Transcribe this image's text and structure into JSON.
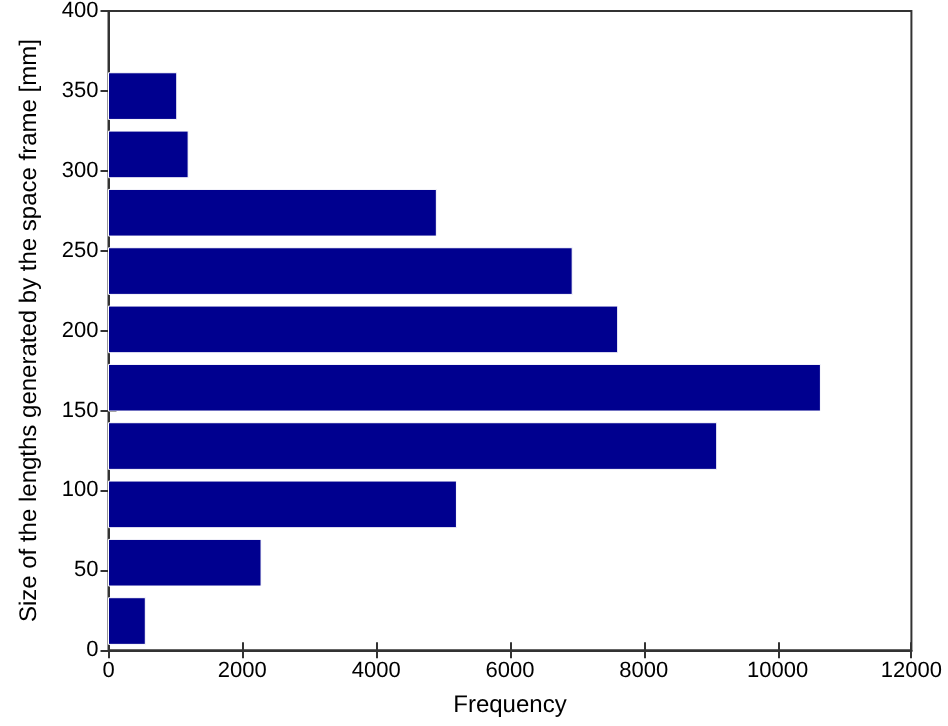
{
  "chart_data": {
    "type": "histogram",
    "orientation": "horizontal",
    "xlabel": "Frequency",
    "ylabel": "Size of the lengths generated by the space frame [mm]",
    "bins": [
      0,
      36.5,
      73,
      109.5,
      146,
      182.5,
      219,
      255.5,
      292,
      328.5,
      365
    ],
    "values": [
      550,
      2280,
      5200,
      9090,
      10640,
      7610,
      6930,
      4900,
      1190,
      1020
    ],
    "color": "#00008f",
    "xlim": [
      0,
      12000
    ],
    "xticks": [
      0,
      2000,
      4000,
      6000,
      8000,
      10000,
      12000
    ],
    "ylim": [
      0,
      400
    ],
    "yticks": [
      0,
      50,
      100,
      150,
      200,
      250,
      300,
      350,
      400
    ],
    "grid": false
  }
}
